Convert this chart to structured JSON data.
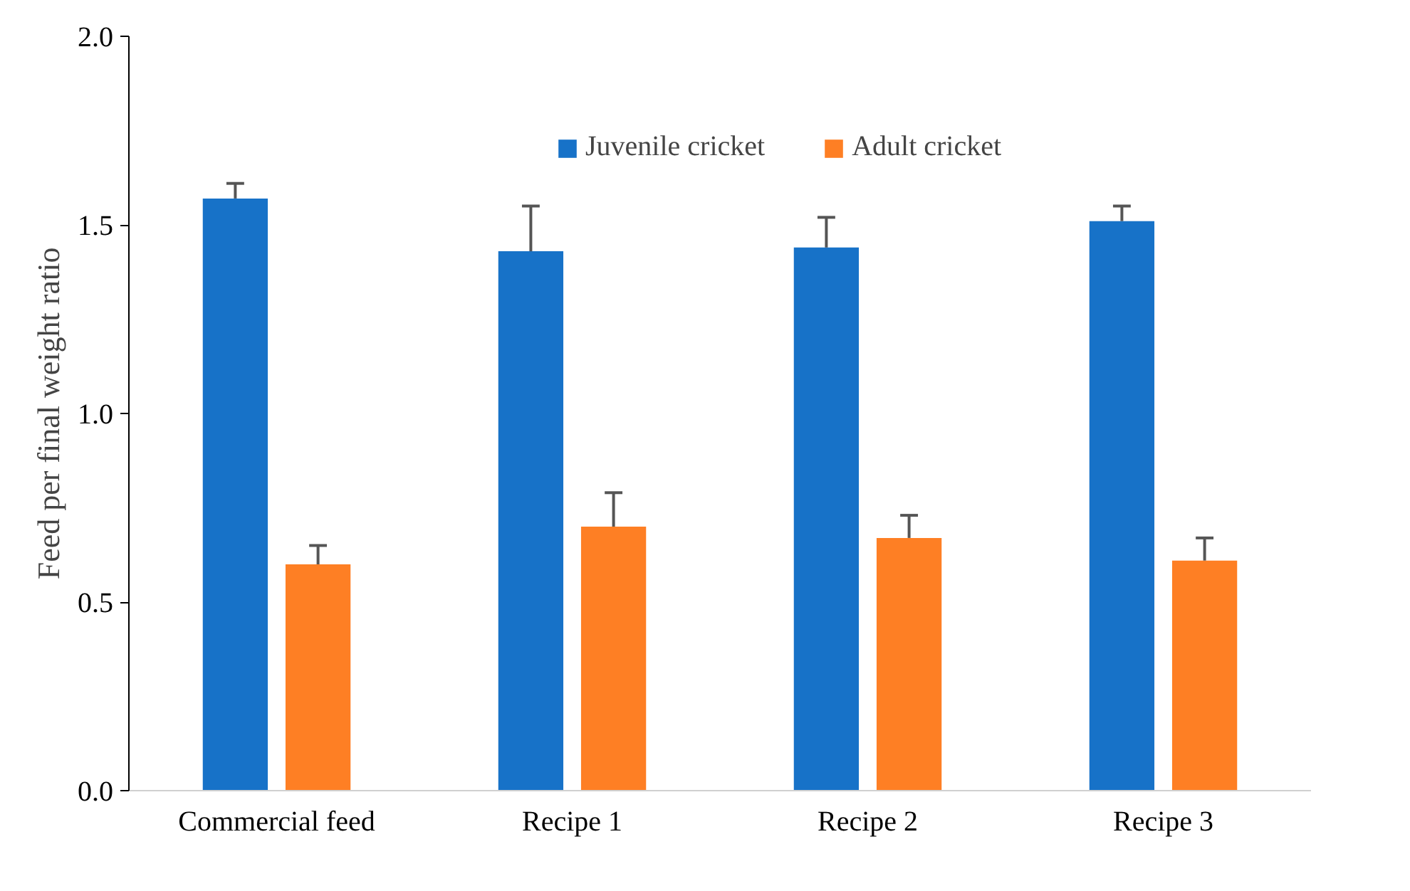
{
  "chart_data": {
    "type": "bar",
    "ylabel": "Feed per final weight ratio",
    "categories": [
      "Commercial feed",
      "Recipe 1",
      "Recipe 2",
      "Recipe 3"
    ],
    "series": [
      {
        "name": "Juvenile cricket",
        "color": "#1772c8",
        "values": [
          1.57,
          1.43,
          1.44,
          1.51
        ],
        "errors": [
          [
            1.57,
            1.61
          ],
          [
            1.43,
            1.55
          ],
          [
            1.44,
            1.52
          ],
          [
            1.51,
            1.55
          ]
        ]
      },
      {
        "name": "Adult cricket",
        "color": "#fe7f24",
        "values": [
          0.6,
          0.7,
          0.67,
          0.61
        ],
        "errors": [
          [
            0.6,
            0.65
          ],
          [
            0.7,
            0.79
          ],
          [
            0.67,
            0.73
          ],
          [
            0.61,
            0.67
          ]
        ]
      }
    ],
    "ylim": [
      0,
      2
    ],
    "yticks": [
      {
        "value": 0,
        "label": "0.0"
      },
      {
        "value": 0.5,
        "label": "0.5"
      },
      {
        "value": 1,
        "label": "1.0"
      },
      {
        "value": 1.5,
        "label": "1.5"
      },
      {
        "value": 2,
        "label": "2.0"
      }
    ],
    "grid": false,
    "legend": "top"
  }
}
